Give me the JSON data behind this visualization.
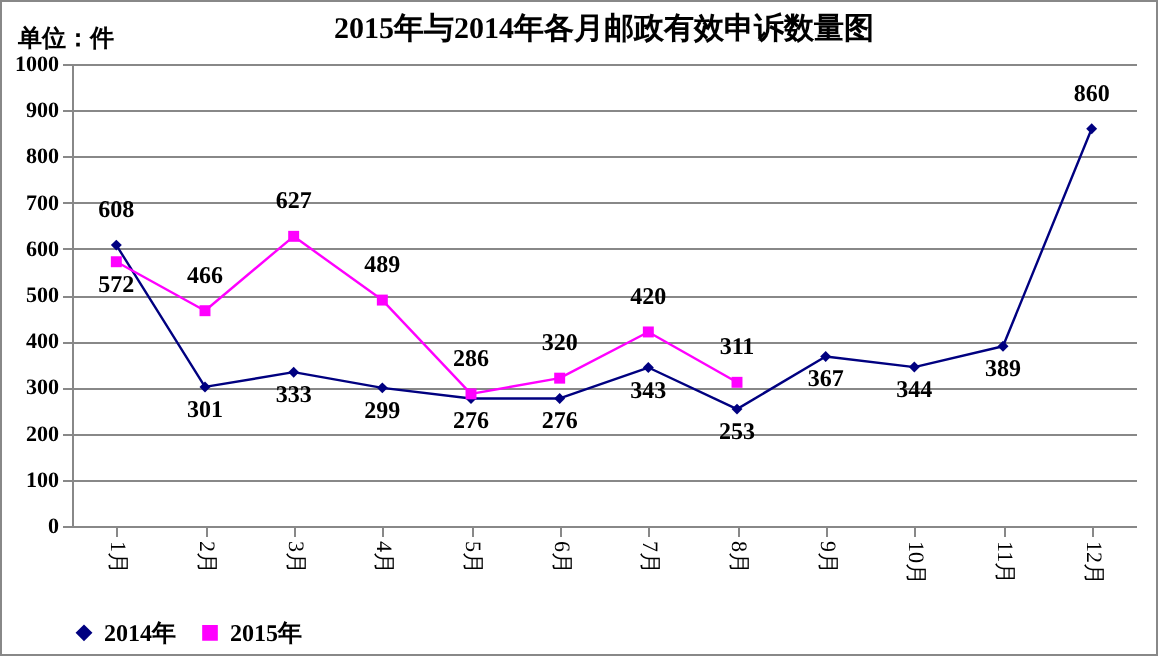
{
  "chart_data": {
    "type": "line",
    "title": "2015年与2014年各月邮政有效申诉数量图",
    "annotations": [
      "单位：件"
    ],
    "categories": [
      "1月",
      "2月",
      "3月",
      "4月",
      "5月",
      "6月",
      "7月",
      "8月",
      "9月",
      "10月",
      "11月",
      "12月"
    ],
    "series": [
      {
        "name": "2014年",
        "color": "#000080",
        "marker": "diamond",
        "values": [
          608,
          301,
          333,
          299,
          276,
          276,
          343,
          253,
          367,
          344,
          389,
          860
        ]
      },
      {
        "name": "2015年",
        "color": "#ff00ff",
        "marker": "square",
        "values": [
          572,
          466,
          627,
          489,
          286,
          320,
          420,
          311,
          null,
          null,
          null,
          null
        ]
      }
    ],
    "ylim": [
      0,
      1000
    ],
    "yticks": [
      0,
      100,
      200,
      300,
      400,
      500,
      600,
      700,
      800,
      900,
      1000
    ],
    "grid": "y",
    "legend": "bottom",
    "data_labels": true,
    "line_style": "solid"
  }
}
